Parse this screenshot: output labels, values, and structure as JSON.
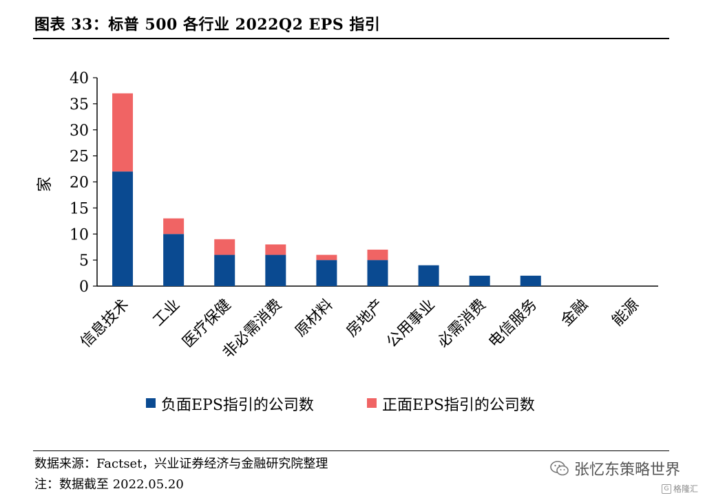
{
  "figure": {
    "title": "图表 33：标普 500 各行业 2022Q2 EPS 指引",
    "source": "数据来源：Factset，兴业证券经济与金融研究院整理",
    "note": "注：数据截至 2022.05.20",
    "watermark": "张忆东策略世界",
    "watermark_icon": "wechat-icon",
    "corner_logo": "格隆汇",
    "corner_logo_mark": "G"
  },
  "chart_data": {
    "type": "bar",
    "stacked": true,
    "categories": [
      "信息技术",
      "工业",
      "医疗保健",
      "非必需消费",
      "原材料",
      "房地产",
      "公用事业",
      "必需消费",
      "电信服务",
      "金融",
      "能源"
    ],
    "series": [
      {
        "name": "负面EPS指引的公司数",
        "color": "#0a4a91",
        "values": [
          22,
          10,
          6,
          6,
          5,
          5,
          4,
          2,
          2,
          0,
          0
        ]
      },
      {
        "name": "正面EPS指引的公司数",
        "color": "#f06464",
        "values": [
          15,
          3,
          3,
          2,
          1,
          2,
          0,
          0,
          0,
          0,
          0
        ]
      }
    ],
    "ylabel": "家",
    "ylim": [
      0,
      40
    ],
    "yticks": [
      0,
      5,
      10,
      15,
      20,
      25,
      30,
      35,
      40
    ],
    "grid": false,
    "legend": "bottom"
  }
}
